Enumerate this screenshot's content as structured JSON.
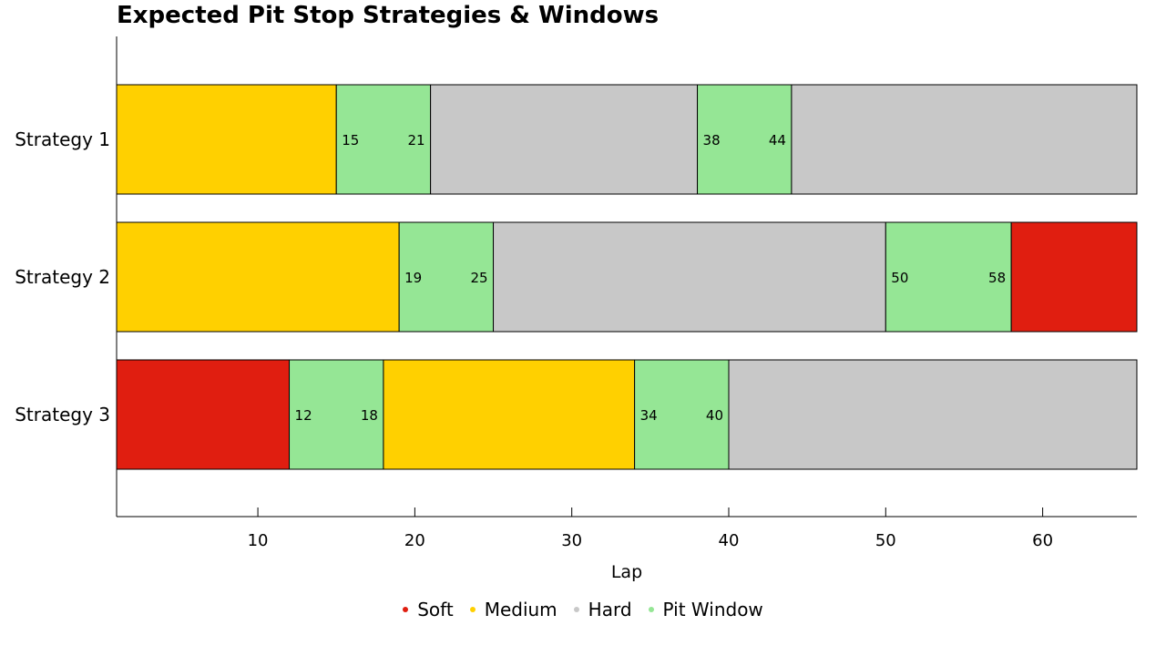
{
  "chart_data": {
    "type": "bar",
    "orientation": "horizontal-stacked",
    "title": "Expected Pit Stop Strategies & Windows",
    "xlabel": "Lap",
    "ylabel": "",
    "xlim": [
      1,
      66
    ],
    "xticks": [
      10,
      20,
      30,
      40,
      50,
      60
    ],
    "grid": false,
    "legend_position": "bottom",
    "colors": {
      "Soft": "#E01E10",
      "Medium": "#FFD000",
      "Hard": "#C8C8C8",
      "Pit Window": "#95E695"
    },
    "legend": [
      "Soft",
      "Medium",
      "Hard",
      "Pit Window"
    ],
    "strategies": [
      {
        "name": "Strategy 1",
        "segments": [
          {
            "type": "Medium",
            "start": 1,
            "end": 15
          },
          {
            "type": "Pit Window",
            "start": 15,
            "end": 21
          },
          {
            "type": "Hard",
            "start": 21,
            "end": 38
          },
          {
            "type": "Pit Window",
            "start": 38,
            "end": 44
          },
          {
            "type": "Hard",
            "start": 44,
            "end": 66
          }
        ],
        "pit_labels": [
          {
            "start": "15",
            "end": "21"
          },
          {
            "start": "38",
            "end": "44"
          }
        ]
      },
      {
        "name": "Strategy 2",
        "segments": [
          {
            "type": "Medium",
            "start": 1,
            "end": 19
          },
          {
            "type": "Pit Window",
            "start": 19,
            "end": 25
          },
          {
            "type": "Hard",
            "start": 25,
            "end": 50
          },
          {
            "type": "Pit Window",
            "start": 50,
            "end": 58
          },
          {
            "type": "Soft",
            "start": 58,
            "end": 66
          }
        ],
        "pit_labels": [
          {
            "start": "19",
            "end": "25"
          },
          {
            "start": "50",
            "end": "58"
          }
        ]
      },
      {
        "name": "Strategy 3",
        "segments": [
          {
            "type": "Soft",
            "start": 1,
            "end": 12
          },
          {
            "type": "Pit Window",
            "start": 12,
            "end": 18
          },
          {
            "type": "Medium",
            "start": 18,
            "end": 34
          },
          {
            "type": "Pit Window",
            "start": 34,
            "end": 40
          },
          {
            "type": "Hard",
            "start": 40,
            "end": 66
          }
        ],
        "pit_labels": [
          {
            "start": "12",
            "end": "18"
          },
          {
            "start": "34",
            "end": "40"
          }
        ]
      }
    ]
  }
}
